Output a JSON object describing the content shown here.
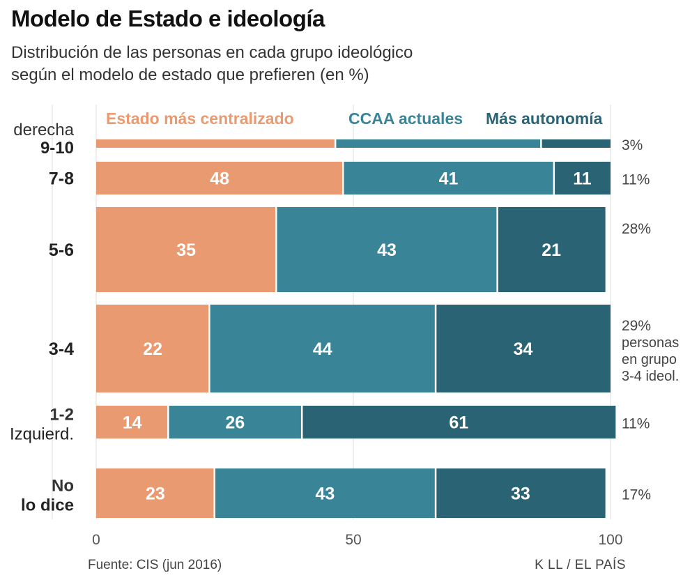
{
  "title": "Modelo de Estado e ideología",
  "subtitle_line1": "Distribución de las personas en cada grupo ideológico",
  "subtitle_line2": "según el modelo de estado que prefieren (en %)",
  "source": "Fuente: CIS (jun 2016)",
  "credit": "K LL / EL PAÍS",
  "colors": {
    "centralizado": "#e99a70",
    "actuales": "#3a8498",
    "autonomia": "#2a6474",
    "axis_text": "#555555",
    "grid": "#eeeeee"
  },
  "chart_data": {
    "type": "bar",
    "orientation": "horizontal",
    "stacked": true,
    "legend_position": "top",
    "xlim": [
      0,
      100
    ],
    "xticks": [
      "0",
      "50",
      "100"
    ],
    "series": [
      {
        "name": "Estado más centralizado",
        "key": "centralizado"
      },
      {
        "name": "CCAA actuales",
        "key": "actuales"
      },
      {
        "name": "Más autonomía",
        "key": "autonomia"
      }
    ],
    "rows": [
      {
        "label_top": "derecha",
        "label_bottom": "9-10",
        "share": "3%",
        "share_lines": [],
        "values": [
          46.5,
          40,
          13.5
        ],
        "show_labels": false
      },
      {
        "label_top": "",
        "label_bottom": "7-8",
        "share": "11%",
        "share_lines": [],
        "values": [
          48,
          41,
          11
        ],
        "show_labels": true
      },
      {
        "label_top": "",
        "label_bottom": "5-6",
        "share": "28%",
        "share_lines": [],
        "values": [
          35,
          43,
          21
        ],
        "show_labels": true
      },
      {
        "label_top": "",
        "label_bottom": "3-4",
        "share": "29%",
        "share_lines": [
          "personas",
          "en grupo",
          "3-4 ideol."
        ],
        "values": [
          22,
          44,
          34
        ],
        "show_labels": true
      },
      {
        "label_top": "1-2",
        "label_bottom": "Izquierd.",
        "share": "11%",
        "share_lines": [],
        "values": [
          14,
          26,
          61
        ],
        "show_labels": true
      },
      {
        "label_top": "No",
        "label_bottom": "lo dice",
        "share": "17%",
        "share_lines": [],
        "values": [
          23,
          43,
          33
        ],
        "show_labels": true
      }
    ]
  }
}
